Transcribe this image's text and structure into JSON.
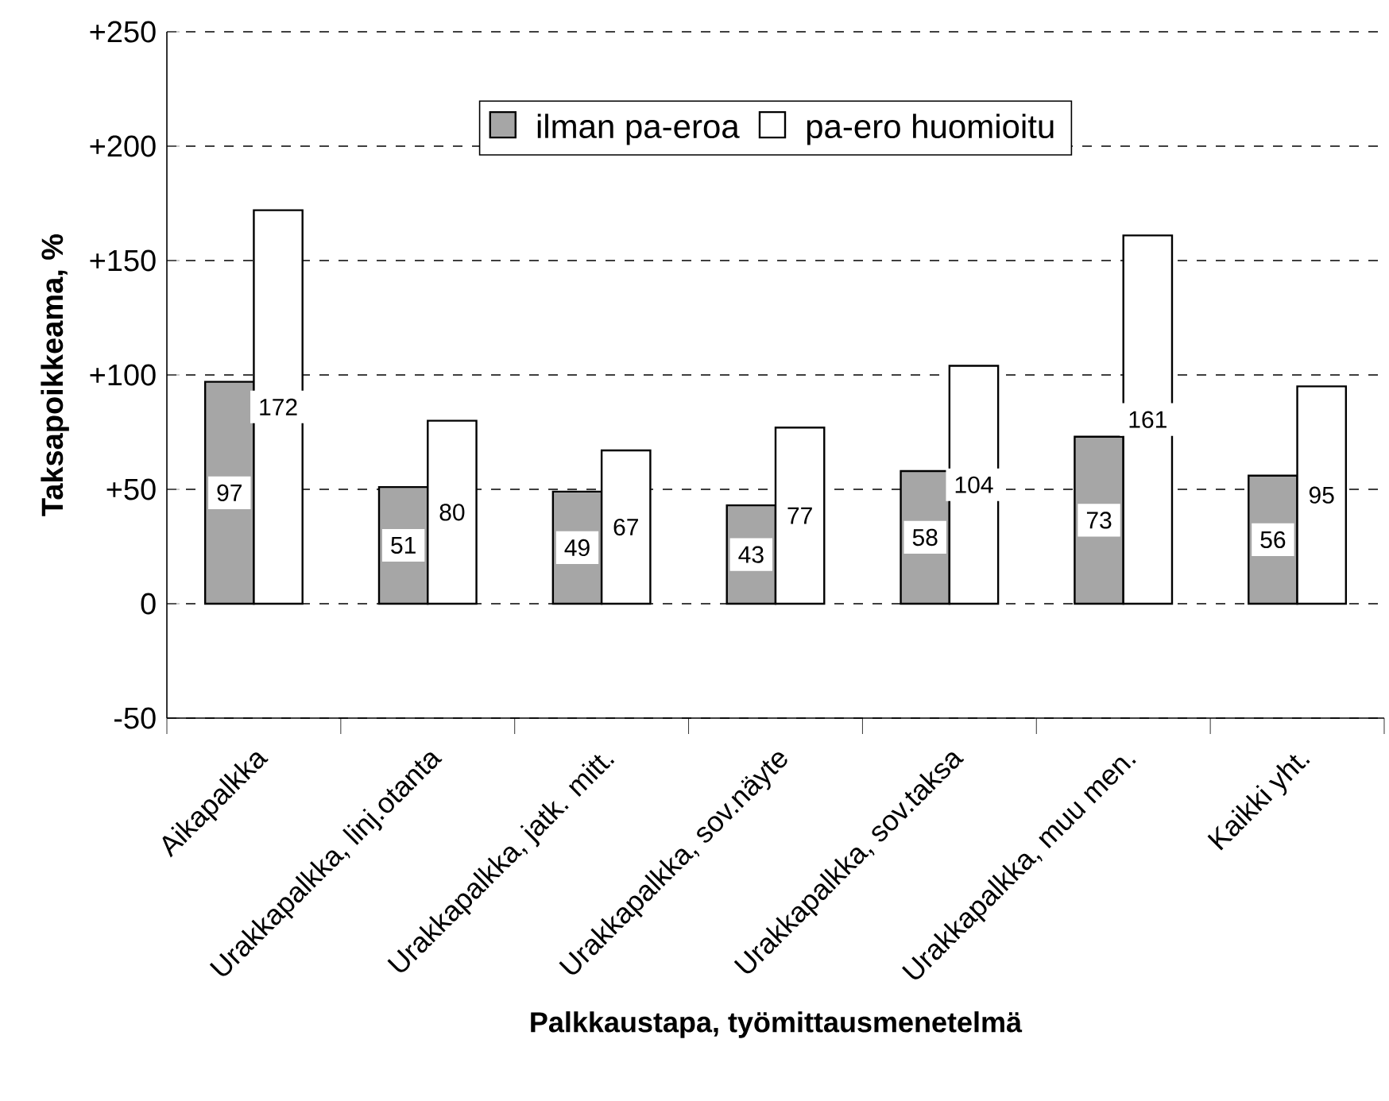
{
  "chart_data": {
    "type": "bar",
    "xlabel": "Palkkaustapa, työmittausmenetelmä",
    "ylabel": "Taksapoikkeama, %",
    "categories": [
      "Aikapalkka",
      "Urakkapalkka, linj.otanta",
      "Urakkapalkka, jatk. mitt.",
      "Urakkapalkka, sov.näyte",
      "Urakkapalkka, sov.taksa",
      "Urakkapalkka, muu men.",
      "Kaikki yht."
    ],
    "series": [
      {
        "name": "ilman pa-eroa",
        "color": "#a6a6a6",
        "values": [
          97,
          51,
          49,
          43,
          58,
          73,
          56
        ]
      },
      {
        "name": "pa-ero huomioitu",
        "color": "#ffffff",
        "values": [
          172,
          80,
          67,
          77,
          104,
          161,
          95
        ]
      }
    ],
    "ylim": [
      -50,
      250
    ],
    "yticks": [
      -50,
      0,
      {
        "value": 50,
        "label": "+50"
      },
      {
        "value": 100,
        "label": "+100"
      },
      {
        "value": 150,
        "label": "+150"
      },
      {
        "value": 200,
        "label": "+200"
      },
      {
        "value": 250,
        "label": "+250"
      }
    ],
    "grid": "y",
    "line_style": "dashed",
    "legend": "top",
    "data_labels": true
  }
}
